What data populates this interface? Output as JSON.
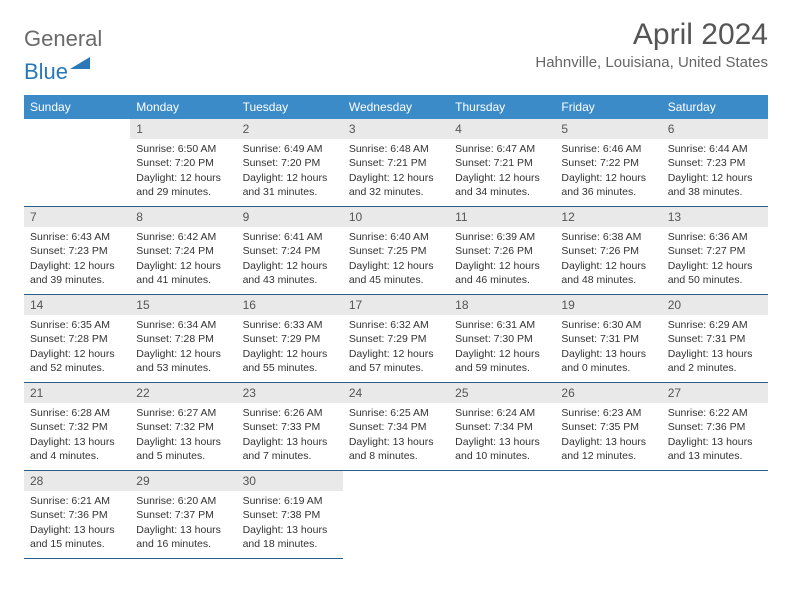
{
  "logo": {
    "part1": "General",
    "part2": "Blue"
  },
  "title": {
    "month": "April 2024",
    "location": "Hahnville, Louisiana, United States"
  },
  "colors": {
    "header_bg": "#3b8bc9",
    "header_text": "#ffffff",
    "daynum_bg": "#e9e9e9",
    "cell_border": "#2a5d87",
    "logo_gray": "#6a6a6a",
    "logo_blue": "#2a78b8",
    "title_color": "#555555",
    "loc_color": "#666666"
  },
  "day_labels": [
    "Sunday",
    "Monday",
    "Tuesday",
    "Wednesday",
    "Thursday",
    "Friday",
    "Saturday"
  ],
  "weeks": [
    [
      null,
      {
        "n": "1",
        "sr": "Sunrise: 6:50 AM",
        "ss": "Sunset: 7:20 PM",
        "dl": "Daylight: 12 hours and 29 minutes."
      },
      {
        "n": "2",
        "sr": "Sunrise: 6:49 AM",
        "ss": "Sunset: 7:20 PM",
        "dl": "Daylight: 12 hours and 31 minutes."
      },
      {
        "n": "3",
        "sr": "Sunrise: 6:48 AM",
        "ss": "Sunset: 7:21 PM",
        "dl": "Daylight: 12 hours and 32 minutes."
      },
      {
        "n": "4",
        "sr": "Sunrise: 6:47 AM",
        "ss": "Sunset: 7:21 PM",
        "dl": "Daylight: 12 hours and 34 minutes."
      },
      {
        "n": "5",
        "sr": "Sunrise: 6:46 AM",
        "ss": "Sunset: 7:22 PM",
        "dl": "Daylight: 12 hours and 36 minutes."
      },
      {
        "n": "6",
        "sr": "Sunrise: 6:44 AM",
        "ss": "Sunset: 7:23 PM",
        "dl": "Daylight: 12 hours and 38 minutes."
      }
    ],
    [
      {
        "n": "7",
        "sr": "Sunrise: 6:43 AM",
        "ss": "Sunset: 7:23 PM",
        "dl": "Daylight: 12 hours and 39 minutes."
      },
      {
        "n": "8",
        "sr": "Sunrise: 6:42 AM",
        "ss": "Sunset: 7:24 PM",
        "dl": "Daylight: 12 hours and 41 minutes."
      },
      {
        "n": "9",
        "sr": "Sunrise: 6:41 AM",
        "ss": "Sunset: 7:24 PM",
        "dl": "Daylight: 12 hours and 43 minutes."
      },
      {
        "n": "10",
        "sr": "Sunrise: 6:40 AM",
        "ss": "Sunset: 7:25 PM",
        "dl": "Daylight: 12 hours and 45 minutes."
      },
      {
        "n": "11",
        "sr": "Sunrise: 6:39 AM",
        "ss": "Sunset: 7:26 PM",
        "dl": "Daylight: 12 hours and 46 minutes."
      },
      {
        "n": "12",
        "sr": "Sunrise: 6:38 AM",
        "ss": "Sunset: 7:26 PM",
        "dl": "Daylight: 12 hours and 48 minutes."
      },
      {
        "n": "13",
        "sr": "Sunrise: 6:36 AM",
        "ss": "Sunset: 7:27 PM",
        "dl": "Daylight: 12 hours and 50 minutes."
      }
    ],
    [
      {
        "n": "14",
        "sr": "Sunrise: 6:35 AM",
        "ss": "Sunset: 7:28 PM",
        "dl": "Daylight: 12 hours and 52 minutes."
      },
      {
        "n": "15",
        "sr": "Sunrise: 6:34 AM",
        "ss": "Sunset: 7:28 PM",
        "dl": "Daylight: 12 hours and 53 minutes."
      },
      {
        "n": "16",
        "sr": "Sunrise: 6:33 AM",
        "ss": "Sunset: 7:29 PM",
        "dl": "Daylight: 12 hours and 55 minutes."
      },
      {
        "n": "17",
        "sr": "Sunrise: 6:32 AM",
        "ss": "Sunset: 7:29 PM",
        "dl": "Daylight: 12 hours and 57 minutes."
      },
      {
        "n": "18",
        "sr": "Sunrise: 6:31 AM",
        "ss": "Sunset: 7:30 PM",
        "dl": "Daylight: 12 hours and 59 minutes."
      },
      {
        "n": "19",
        "sr": "Sunrise: 6:30 AM",
        "ss": "Sunset: 7:31 PM",
        "dl": "Daylight: 13 hours and 0 minutes."
      },
      {
        "n": "20",
        "sr": "Sunrise: 6:29 AM",
        "ss": "Sunset: 7:31 PM",
        "dl": "Daylight: 13 hours and 2 minutes."
      }
    ],
    [
      {
        "n": "21",
        "sr": "Sunrise: 6:28 AM",
        "ss": "Sunset: 7:32 PM",
        "dl": "Daylight: 13 hours and 4 minutes."
      },
      {
        "n": "22",
        "sr": "Sunrise: 6:27 AM",
        "ss": "Sunset: 7:32 PM",
        "dl": "Daylight: 13 hours and 5 minutes."
      },
      {
        "n": "23",
        "sr": "Sunrise: 6:26 AM",
        "ss": "Sunset: 7:33 PM",
        "dl": "Daylight: 13 hours and 7 minutes."
      },
      {
        "n": "24",
        "sr": "Sunrise: 6:25 AM",
        "ss": "Sunset: 7:34 PM",
        "dl": "Daylight: 13 hours and 8 minutes."
      },
      {
        "n": "25",
        "sr": "Sunrise: 6:24 AM",
        "ss": "Sunset: 7:34 PM",
        "dl": "Daylight: 13 hours and 10 minutes."
      },
      {
        "n": "26",
        "sr": "Sunrise: 6:23 AM",
        "ss": "Sunset: 7:35 PM",
        "dl": "Daylight: 13 hours and 12 minutes."
      },
      {
        "n": "27",
        "sr": "Sunrise: 6:22 AM",
        "ss": "Sunset: 7:36 PM",
        "dl": "Daylight: 13 hours and 13 minutes."
      }
    ],
    [
      {
        "n": "28",
        "sr": "Sunrise: 6:21 AM",
        "ss": "Sunset: 7:36 PM",
        "dl": "Daylight: 13 hours and 15 minutes."
      },
      {
        "n": "29",
        "sr": "Sunrise: 6:20 AM",
        "ss": "Sunset: 7:37 PM",
        "dl": "Daylight: 13 hours and 16 minutes."
      },
      {
        "n": "30",
        "sr": "Sunrise: 6:19 AM",
        "ss": "Sunset: 7:38 PM",
        "dl": "Daylight: 13 hours and 18 minutes."
      },
      null,
      null,
      null,
      null
    ]
  ]
}
